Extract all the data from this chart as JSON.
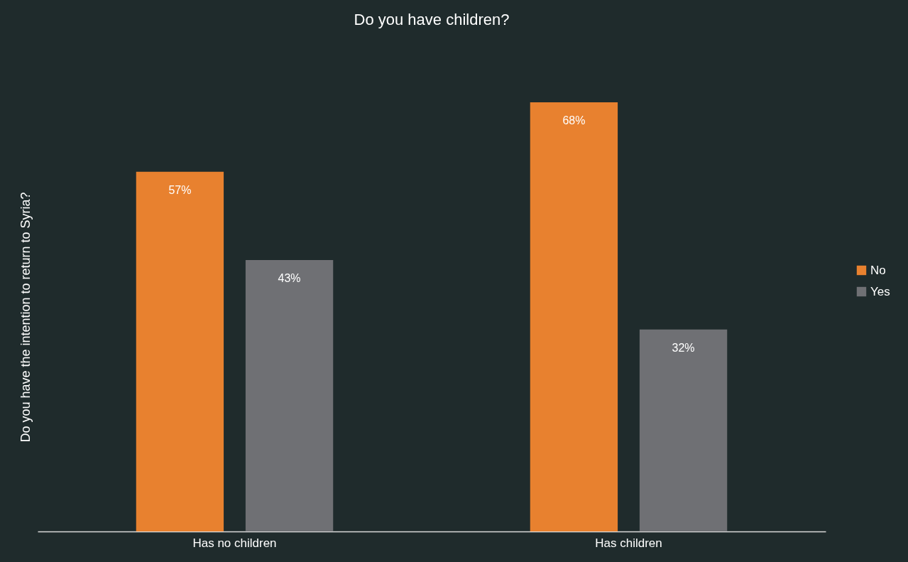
{
  "chart_data": {
    "type": "bar",
    "title": "Do you have children?",
    "ylabel": "Do you have the intention to return to Syria?",
    "categories": [
      "Has no children",
      "Has children"
    ],
    "series": [
      {
        "name": "No",
        "color": "#e8812f",
        "values": [
          57,
          68
        ],
        "value_labels": [
          "57%",
          "68%"
        ]
      },
      {
        "name": "Yes",
        "color": "#6f7074",
        "values": [
          43,
          32
        ],
        "value_labels": [
          "43%",
          "32%"
        ]
      }
    ],
    "tick_labels": "x",
    "legend": "right"
  }
}
